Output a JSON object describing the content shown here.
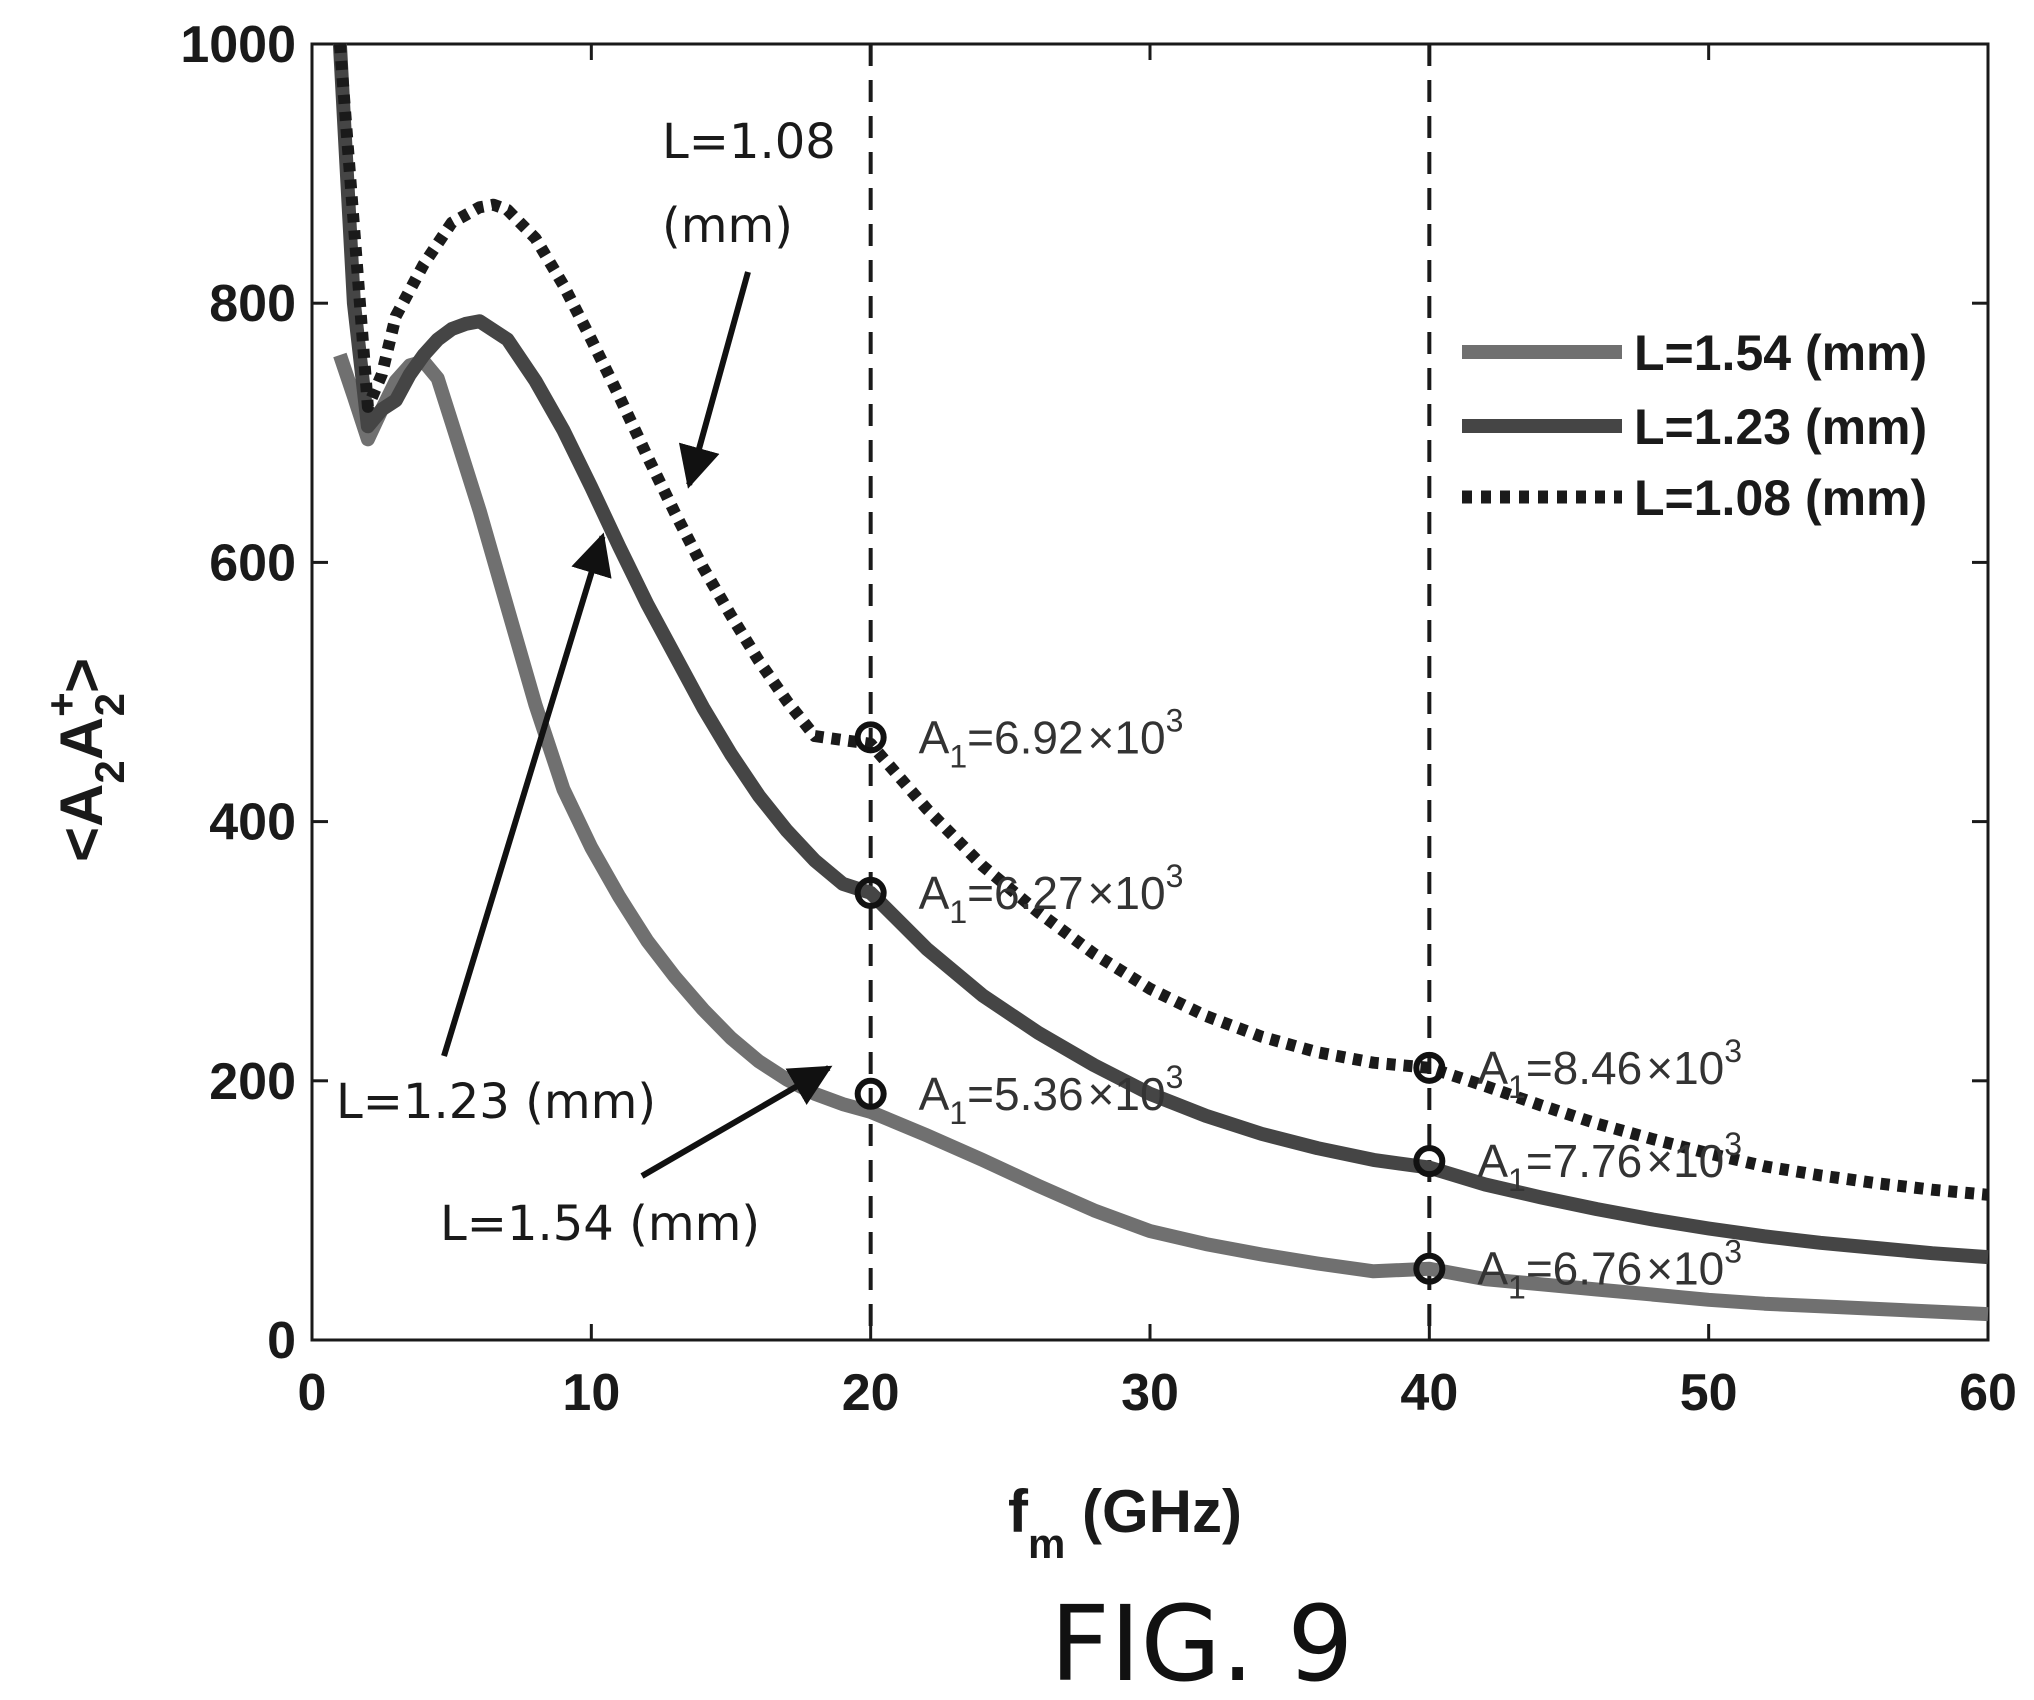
{
  "figure_caption": "FIG. 9",
  "chart_data": {
    "type": "line",
    "title": "",
    "xlabel": {
      "main": "f",
      "sub": "m",
      "rest": " (GHz)"
    },
    "ylabel": {
      "main": "<A",
      "sub1": "2",
      "mid": "A",
      "sup": "+",
      "sub2": "2",
      "end": ">"
    },
    "xlim": [
      0,
      60
    ],
    "ylim": [
      0,
      1000
    ],
    "xticks": [
      0,
      10,
      20,
      30,
      40,
      50,
      60
    ],
    "yticks": [
      0,
      200,
      400,
      600,
      800,
      1000
    ],
    "grid": false,
    "legend_position": "top-right",
    "legend": [
      "L=1.54 (mm)",
      "L=1.23 (mm)",
      "L=1.08 (mm)"
    ],
    "vertical_reference_lines": [
      20,
      40
    ],
    "series": [
      {
        "name": "L=1.54 (mm)",
        "style": "solid",
        "color": "#707070",
        "x": [
          1,
          1.5,
          2,
          2.5,
          3,
          3.5,
          4,
          4.5,
          5,
          6,
          7,
          8,
          9,
          10,
          11,
          12,
          13,
          14,
          15,
          16,
          17,
          18,
          19,
          20,
          22,
          24,
          26,
          28,
          30,
          32,
          34,
          36,
          38,
          40,
          42,
          44,
          46,
          48,
          50,
          52,
          54,
          56,
          58,
          60
        ],
        "y": [
          760,
          728,
          695,
          718,
          740,
          752,
          755,
          742,
          708,
          640,
          565,
          490,
          425,
          380,
          342,
          308,
          280,
          255,
          233,
          215,
          201,
          190,
          182,
          176,
          158,
          139,
          119,
          100,
          84,
          74,
          66,
          59,
          53,
          55,
          47,
          43,
          39,
          35,
          31,
          28,
          26,
          24,
          22,
          20
        ]
      },
      {
        "name": "L=1.23 (mm)",
        "style": "solid",
        "color": "#454545",
        "x": [
          1,
          1.5,
          2,
          2.5,
          3,
          3.5,
          4,
          4.5,
          5,
          5.5,
          6,
          7,
          8,
          9,
          10,
          11,
          12,
          13,
          14,
          15,
          16,
          17,
          18,
          19,
          20,
          22,
          24,
          26,
          28,
          30,
          32,
          34,
          36,
          38,
          40,
          42,
          44,
          46,
          48,
          50,
          52,
          54,
          56,
          58,
          60
        ],
        "y": [
          1000,
          800,
          705,
          718,
          725,
          745,
          760,
          772,
          780,
          784,
          786,
          772,
          740,
          702,
          658,
          612,
          568,
          528,
          488,
          452,
          420,
          393,
          370,
          352,
          345,
          302,
          266,
          237,
          212,
          190,
          173,
          159,
          148,
          139,
          133,
          120,
          110,
          101,
          93,
          86,
          80,
          75,
          71,
          67,
          64
        ]
      },
      {
        "name": "L=1.08 (mm)",
        "style": "dotted",
        "color": "#1a1a1a",
        "x": [
          1,
          1.5,
          2,
          2.5,
          3,
          4,
          5,
          6,
          6.5,
          7,
          8,
          9,
          10,
          11,
          12,
          13,
          14,
          15,
          16,
          17,
          18,
          19,
          20,
          22,
          24,
          26,
          28,
          30,
          32,
          34,
          36,
          38,
          40,
          42,
          44,
          46,
          48,
          50,
          52,
          54,
          56,
          58,
          60
        ],
        "y": [
          1000,
          860,
          720,
          745,
          790,
          830,
          862,
          874,
          876,
          872,
          850,
          814,
          772,
          728,
          682,
          638,
          596,
          559,
          524,
          493,
          466,
          463,
          460,
          410,
          366,
          330,
          298,
          271,
          250,
          234,
          222,
          214,
          210,
          196,
          181,
          167,
          155,
          144,
          134,
          127,
          121,
          116,
          112
        ]
      }
    ],
    "markers": [
      {
        "series": "L=1.08 (mm)",
        "x": 20,
        "y": 465,
        "label": "A",
        "sub": "1",
        "value": "=6.92",
        "times": "×",
        "base": "10",
        "exp": "3"
      },
      {
        "series": "L=1.23 (mm)",
        "x": 20,
        "y": 345,
        "label": "A",
        "sub": "1",
        "value": "=6.27",
        "times": "×",
        "base": "10",
        "exp": "3"
      },
      {
        "series": "L=1.54 (mm)",
        "x": 20,
        "y": 190,
        "label": "A",
        "sub": "1",
        "value": "=5.36",
        "times": "×",
        "base": "10",
        "exp": "3"
      },
      {
        "series": "L=1.08 (mm)",
        "x": 40,
        "y": 210,
        "label": "A",
        "sub": "1",
        "value": "=8.46",
        "times": "×",
        "base": "10",
        "exp": "3"
      },
      {
        "series": "L=1.23 (mm)",
        "x": 40,
        "y": 138,
        "label": "A",
        "sub": "1",
        "value": "=7.76",
        "times": "×",
        "base": "10",
        "exp": "3"
      },
      {
        "series": "L=1.54 (mm)",
        "x": 40,
        "y": 55,
        "label": "A",
        "sub": "1",
        "value": "=6.76",
        "times": "×",
        "base": "10",
        "exp": "3"
      }
    ],
    "annotations": [
      {
        "lines": [
          "L=1.08",
          "(mm)"
        ],
        "target_x": 13.5,
        "target_y": 660
      },
      {
        "lines": [
          "L=1.23 (mm)"
        ],
        "target_x": 10.4,
        "target_y": 620
      },
      {
        "lines": [
          "L=1.54 (mm)"
        ],
        "target_x": 18.5,
        "target_y": 210
      }
    ]
  }
}
